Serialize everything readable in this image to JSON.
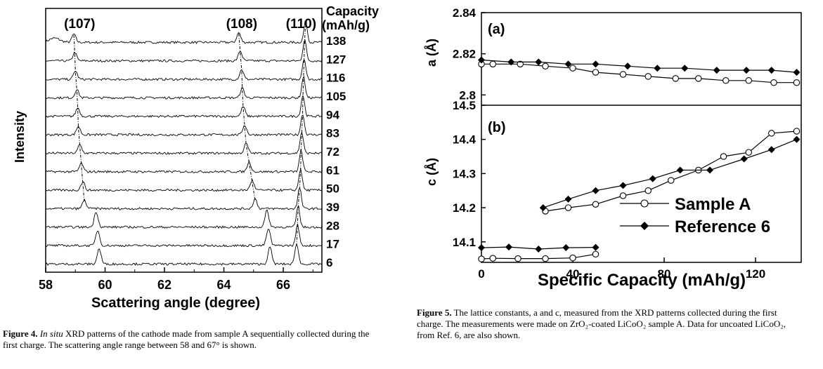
{
  "chart_data": [
    {
      "type": "line",
      "panel": "figure-4",
      "xlabel": "Scattering angle (degree)",
      "ylabel": "Intensity",
      "xlim": [
        58,
        67.3
      ],
      "xticks": [
        58,
        60,
        62,
        64,
        66
      ],
      "legend_title": [
        "Capacity",
        "(mAh/g)"
      ],
      "series_labels": [
        "138",
        "127",
        "116",
        "105",
        "94",
        "83",
        "72",
        "61",
        "50",
        "39",
        "28",
        "17",
        "6"
      ],
      "peak_labels": [
        {
          "label": "(107)",
          "x": 59.0
        },
        {
          "label": "(108)",
          "x": 64.6
        },
        {
          "label": "(110)",
          "x": 66.6
        }
      ],
      "peaks_107": [
        58.95,
        58.98,
        59.0,
        59.05,
        59.08,
        59.1,
        59.15,
        59.2,
        59.25,
        59.3,
        59.7,
        59.75,
        59.8
      ],
      "peaks_108": [
        64.5,
        64.55,
        64.6,
        64.62,
        64.65,
        64.7,
        64.75,
        64.85,
        64.95,
        65.05,
        65.45,
        65.5,
        65.55
      ],
      "peaks_110": [
        66.75,
        66.72,
        66.7,
        66.68,
        66.66,
        66.65,
        66.62,
        66.6,
        66.58,
        66.55,
        66.5,
        66.48,
        66.45
      ]
    },
    {
      "type": "line",
      "panel": "figure-5",
      "xlabel": "Specific Capacity (mAh/g)",
      "xlim": [
        0,
        140
      ],
      "xticks": [
        0,
        40,
        80,
        120
      ],
      "panels": [
        {
          "label": "(a)",
          "ylabel": "a (Å)",
          "ylim": [
            2.795,
            2.84
          ],
          "yticks": [
            2.8,
            2.82,
            2.84
          ],
          "series": [
            {
              "name": "Sample A",
              "x": [
                0,
                5,
                17,
                28,
                40,
                50,
                62,
                73,
                85,
                95,
                107,
                117,
                128,
                138
              ],
              "y": [
                2.815,
                2.815,
                2.815,
                2.814,
                2.813,
                2.811,
                2.81,
                2.809,
                2.808,
                2.808,
                2.807,
                2.807,
                2.806,
                2.806
              ]
            },
            {
              "name": "Reference 6",
              "x": [
                0,
                13,
                25,
                38,
                50,
                64,
                77,
                89,
                103,
                116,
                127,
                138
              ],
              "y": [
                2.817,
                2.816,
                2.816,
                2.815,
                2.815,
                2.814,
                2.813,
                2.813,
                2.812,
                2.812,
                2.812,
                2.811
              ]
            }
          ],
          "series_b": [
            {
              "name": "Sample A",
              "x": [
                0,
                25
              ],
              "y": [
                2.817,
                2.817
              ]
            },
            {
              "name": "Reference 6",
              "x": [
                25,
                50
              ],
              "y": [
                2.817,
                2.818
              ]
            }
          ]
        },
        {
          "label": "(b)",
          "ylabel": "c (Å)",
          "ylim": [
            14.04,
            14.5
          ],
          "yticks": [
            14.1,
            14.2,
            14.3,
            14.4,
            14.5
          ],
          "series": [
            {
              "name": "Sample A",
              "x": [
                28,
                38,
                50,
                62,
                73,
                83,
                95,
                106,
                117,
                127,
                138
              ],
              "y": [
                14.19,
                14.2,
                14.21,
                14.235,
                14.25,
                14.28,
                14.31,
                14.35,
                14.362,
                14.418,
                14.424
              ]
            },
            {
              "name": "Reference 6",
              "x": [
                27,
                38,
                50,
                62,
                75,
                87,
                100,
                115,
                127,
                138
              ],
              "y": [
                14.2,
                14.225,
                14.25,
                14.265,
                14.285,
                14.31,
                14.31,
                14.343,
                14.37,
                14.4
              ]
            }
          ],
          "series_low": [
            {
              "name": "Sample A",
              "x": [
                0,
                5,
                16,
                28,
                40,
                50
              ],
              "y": [
                14.05,
                14.052,
                14.051,
                14.051,
                14.053,
                14.064
              ]
            },
            {
              "name": "Reference 6",
              "x": [
                0,
                12,
                25,
                37,
                50
              ],
              "y": [
                14.083,
                14.085,
                14.079,
                14.083,
                14.084
              ]
            }
          ]
        }
      ],
      "legend": [
        "Sample A",
        "Reference 6"
      ]
    }
  ],
  "captions": {
    "fig4_label": "Figure 4.",
    "fig4_italic": "In situ",
    "fig4_text": " XRD patterns of the cathode made from sample A sequentially collected during the first charge. The scattering angle range between 58 and 67° is shown.",
    "fig5_label": "Figure 5.",
    "fig5_text": " The lattice constants, a and c, measured from the XRD patterns collected during the first charge. The measurements were made on ZrO₂-coated LiCoO₂ sample A. Data for uncoated LiCoO₂, from Ref. 6, are also shown."
  }
}
